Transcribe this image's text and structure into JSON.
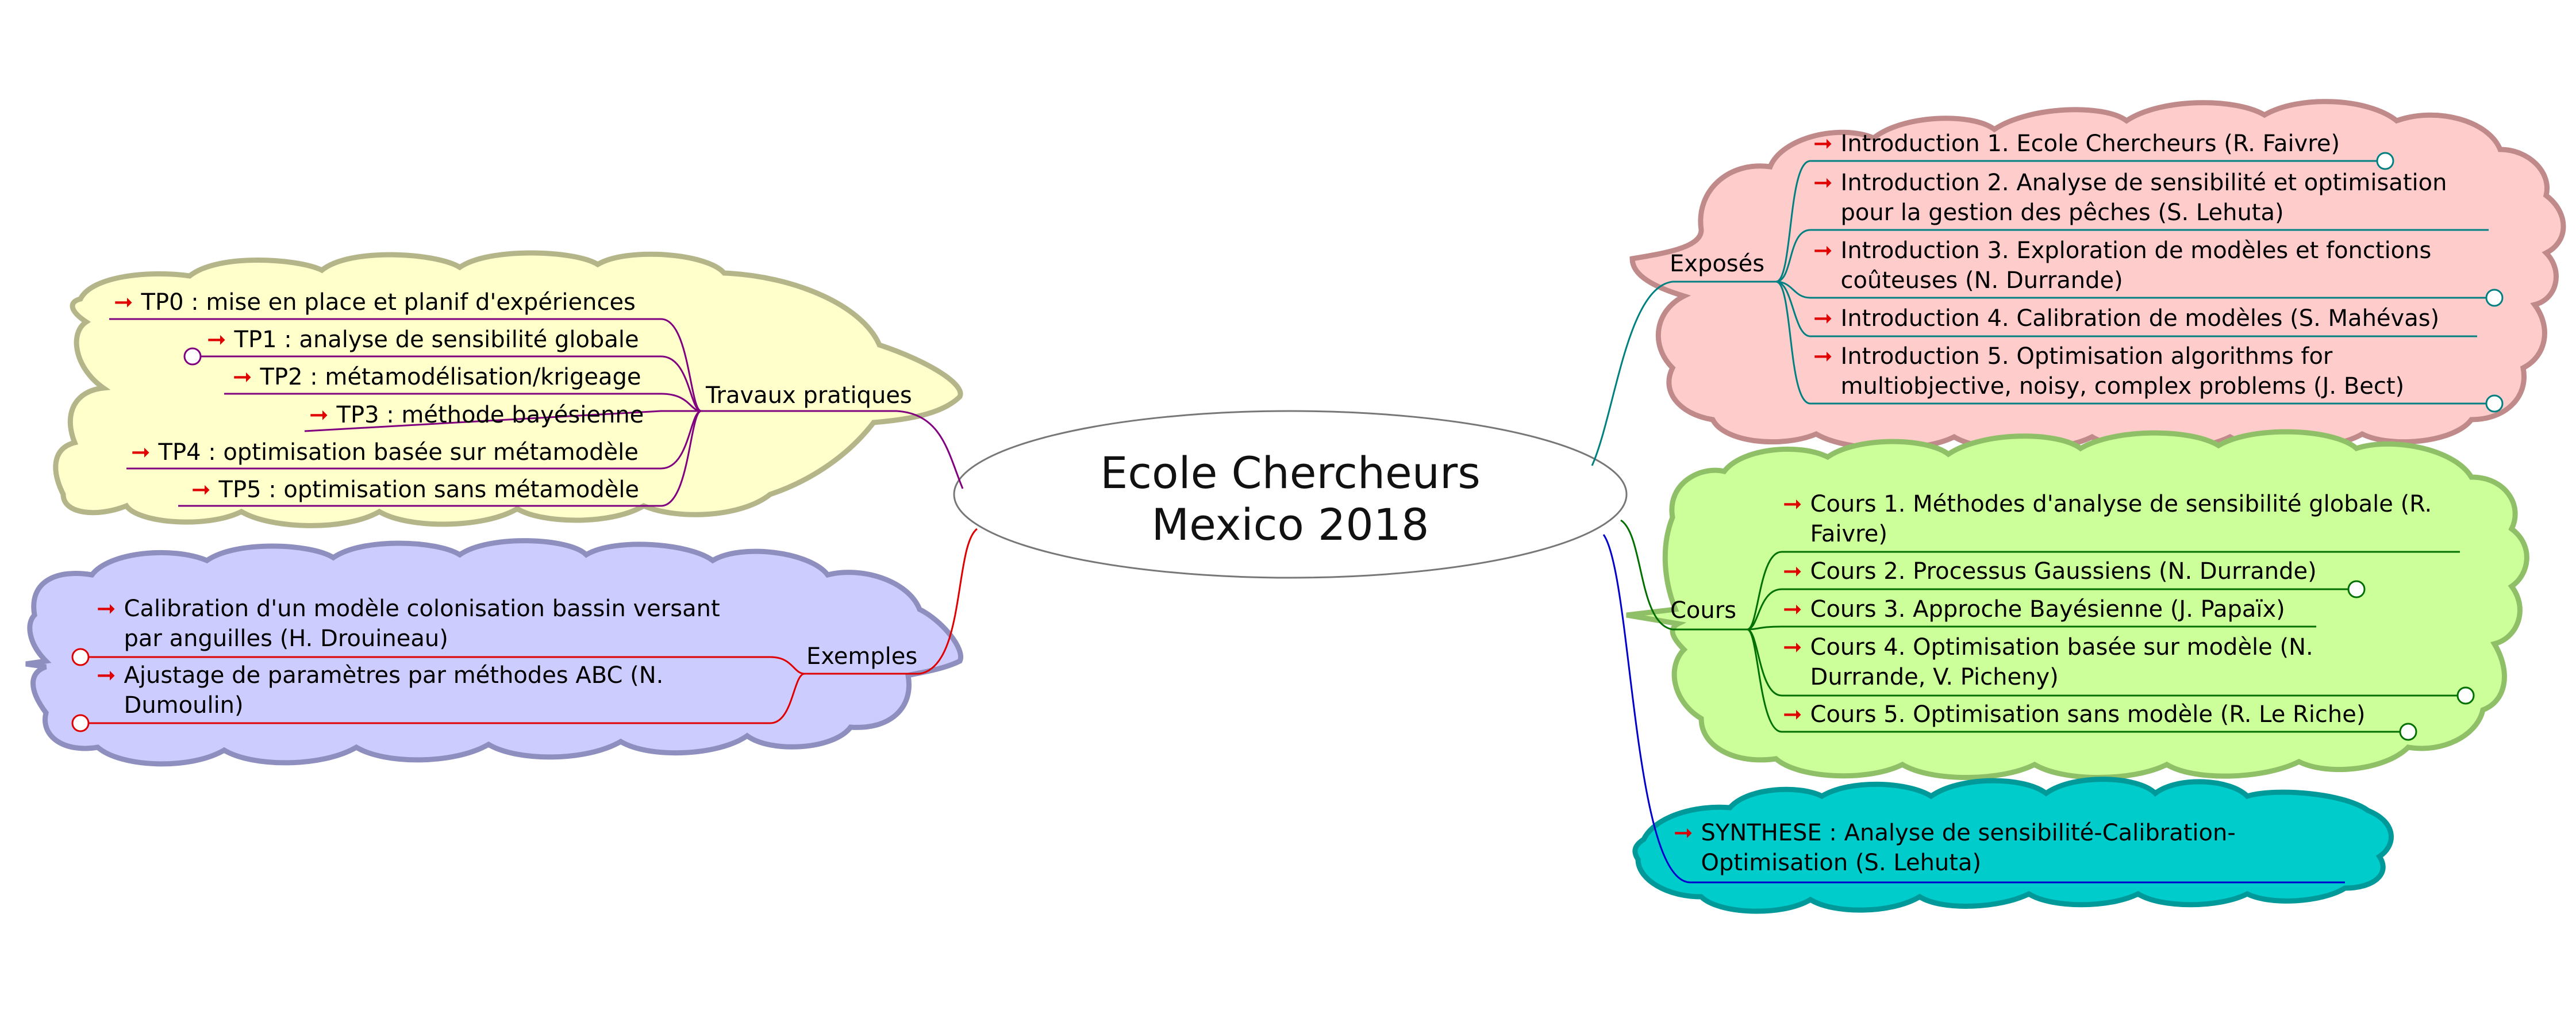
{
  "center": {
    "line1": "Ecole Chercheurs",
    "line2": "Mexico 2018"
  },
  "colors": {
    "tp_fill": "#ffffcc",
    "tp_stroke": "#b5b58a",
    "tp_line": "#800080",
    "ex_fill": "#ccccff",
    "ex_stroke": "#8f8fbf",
    "ex_line": "#e00000",
    "expo_fill": "#ffcccc",
    "expo_stroke": "#c08a8a",
    "expo_line": "#008080",
    "cours_fill": "#ccff99",
    "cours_stroke": "#8fbf66",
    "cours_line": "#007000",
    "syn_fill": "#00cccc",
    "syn_stroke": "#009999",
    "syn_line": "#0000cc",
    "arrow": "#e00000"
  },
  "branches": {
    "tp": {
      "title": "Travaux pratiques",
      "items": [
        "TP0 : mise en place et planif d'expériences",
        "TP1 : analyse de sensibilité globale",
        "TP2 : métamodélisation/krigeage",
        "TP3 : méthode bayésienne",
        "TP4 : optimisation basée sur métamodèle",
        "TP5 : optimisation sans métamodèle"
      ]
    },
    "exemples": {
      "title": "Exemples",
      "items": [
        "Calibration d'un modèle colonisation bassin versant par anguilles (H. Drouineau)",
        "Ajustage de paramètres par méthodes ABC (N. Dumoulin)"
      ]
    },
    "exposes": {
      "title": "Exposés",
      "items": [
        "Introduction 1. Ecole Chercheurs (R. Faivre)",
        "Introduction 2. Analyse de sensibilité et optimisation pour la gestion des pêches (S. Lehuta)",
        "Introduction 3. Exploration de modèles et fonctions coûteuses (N. Durrande)",
        "Introduction 4. Calibration de modèles (S. Mahévas)",
        "Introduction 5. Optimisation algorithms for multiobjective, noisy, complex problems (J. Bect)"
      ]
    },
    "cours": {
      "title": "Cours",
      "items": [
        "Cours 1. Méthodes d'analyse de sensibilité globale (R. Faivre)",
        "Cours 2. Processus Gaussiens (N. Durrande)",
        "Cours 3. Approche Bayésienne (J. Papaïx)",
        "Cours 4. Optimisation basée sur modèle (N. Durrande, V. Picheny)",
        "Cours 5. Optimisation sans modèle (R. Le Riche)"
      ]
    },
    "synthese": {
      "items": [
        "SYNTHESE : Analyse de sensibilité-Calibration-Optimisation (S. Lehuta)"
      ]
    }
  }
}
